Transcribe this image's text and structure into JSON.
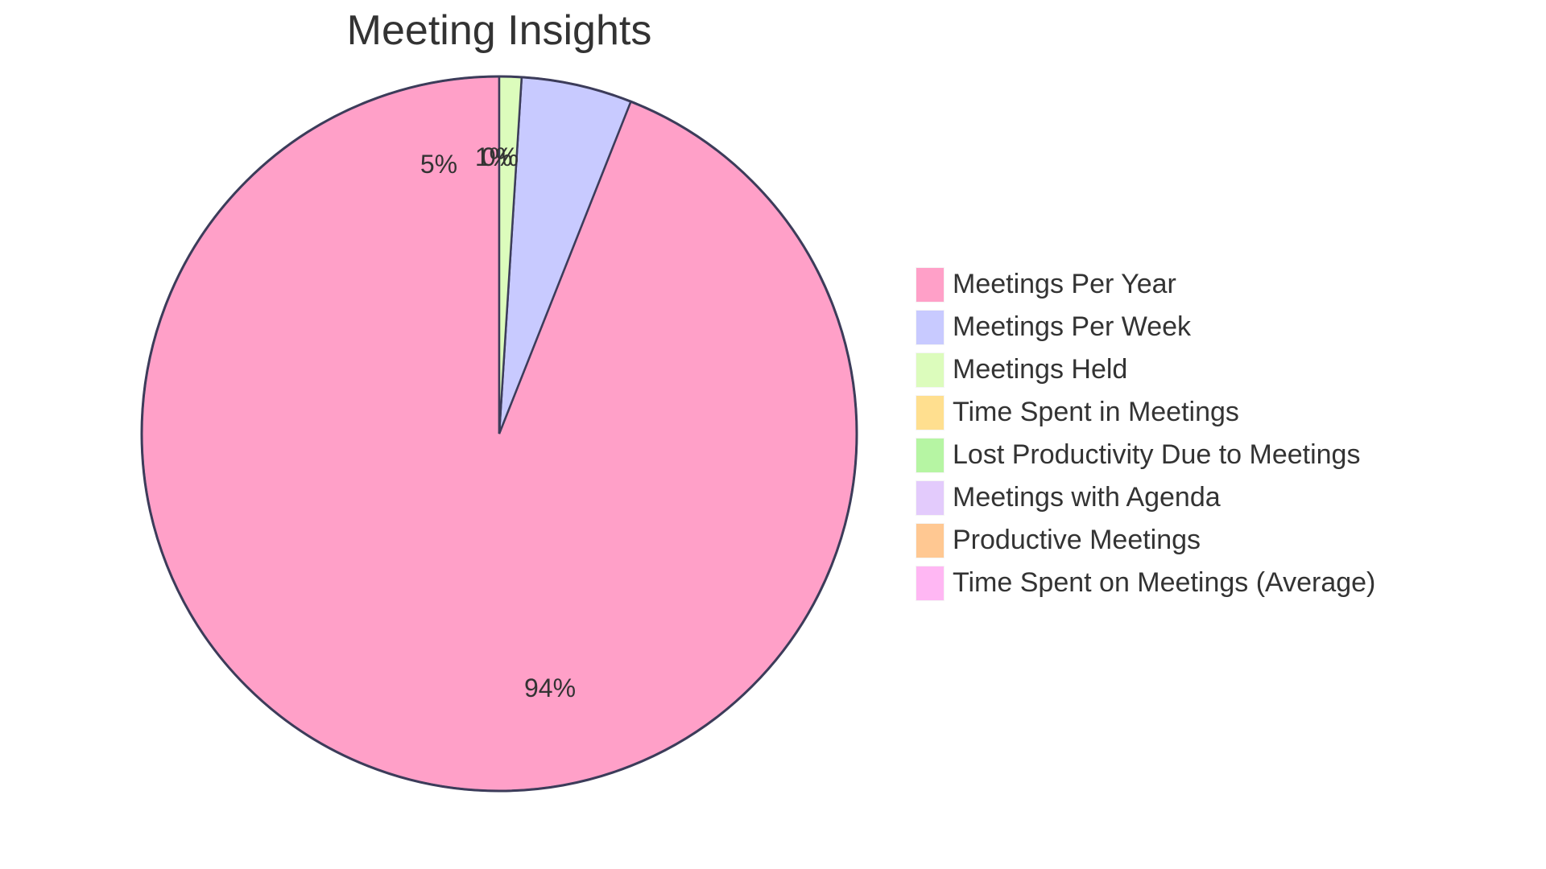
{
  "title": "Meeting Insights",
  "chart_data": {
    "type": "pie",
    "title": "Meeting Insights",
    "categories": [
      "Meetings Per Year",
      "Meetings Per Week",
      "Meetings Held",
      "Time Spent in Meetings",
      "Lost Productivity Due to Meetings",
      "Meetings with Agenda",
      "Productive Meetings",
      "Time Spent on Meetings (Average)"
    ],
    "values": [
      94,
      5,
      1,
      0,
      0,
      0,
      0,
      0
    ],
    "value_labels": [
      "94%",
      "5%",
      "1%",
      "0%",
      "",
      "",
      "",
      ""
    ],
    "colors": [
      "#ffa0c8",
      "#c8caff",
      "#dcfcbc",
      "#ffdf8f",
      "#b6f5a3",
      "#e3cbfc",
      "#ffc892",
      "#ffb7f3"
    ],
    "stroke_color": "#3c3c5a",
    "legend_position": "right",
    "start_angle": "12 o'clock, counter-clockwise"
  },
  "legend": {
    "items": [
      {
        "label": "Meetings Per Year",
        "color": "#ffa0c8"
      },
      {
        "label": "Meetings Per Week",
        "color": "#c8caff"
      },
      {
        "label": "Meetings Held",
        "color": "#dcfcbc"
      },
      {
        "label": "Time Spent in Meetings",
        "color": "#ffdf8f"
      },
      {
        "label": "Lost Productivity Due to Meetings",
        "color": "#b6f5a3"
      },
      {
        "label": "Meetings with Agenda",
        "color": "#e3cbfc"
      },
      {
        "label": "Productive Meetings",
        "color": "#ffc892"
      },
      {
        "label": "Time Spent on Meetings (Average)",
        "color": "#ffb7f3"
      }
    ]
  },
  "slice_labels": {
    "pink": "94%",
    "blue": "5%",
    "green": "1%",
    "zero": "0%"
  }
}
